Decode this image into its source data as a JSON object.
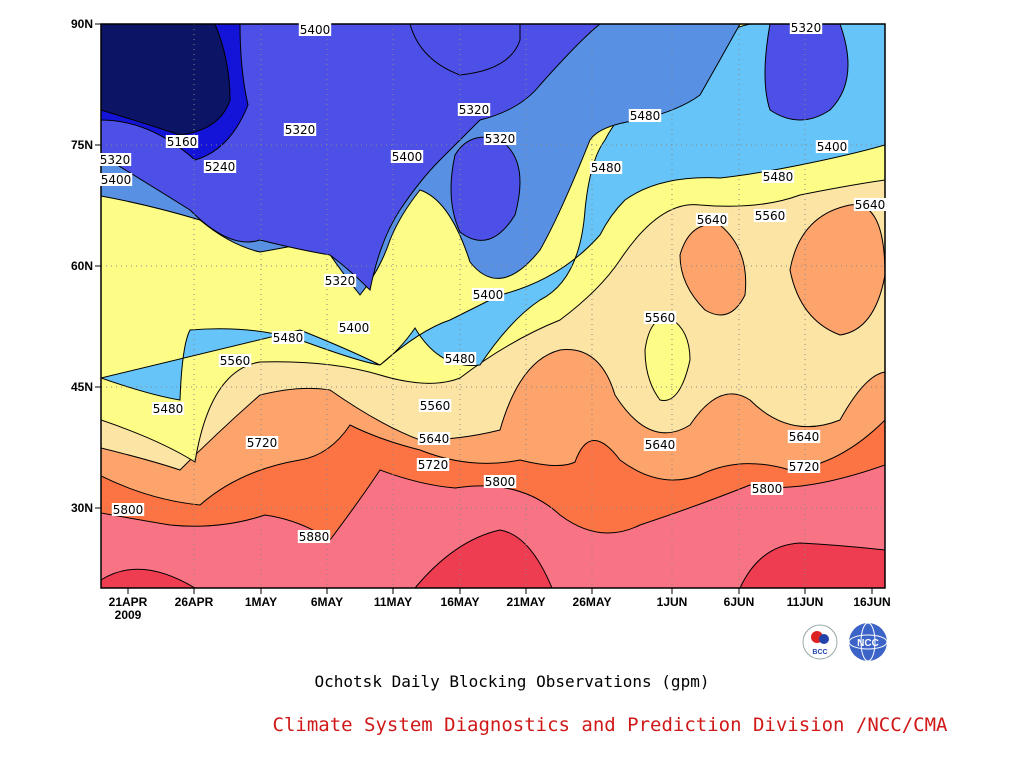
{
  "chart_data": {
    "type": "contour",
    "title": "Ochotsk Daily Blocking Observations (gpm)",
    "x_ticks": [
      "21APR",
      "26APR",
      "1MAY",
      "6MAY",
      "11MAY",
      "16MAY",
      "21MAY",
      "26MAY",
      "1JUN",
      "6JUN",
      "11JUN",
      "16JUN"
    ],
    "x_year_label": "2009",
    "y_ticks": [
      "90N",
      "75N",
      "60N",
      "45N",
      "30N"
    ],
    "contour_levels": [
      5160,
      5240,
      5320,
      5400,
      5480,
      5560,
      5640,
      5720,
      5800,
      5880
    ],
    "level_colors": {
      "below_5160": "#0c1466",
      "5160_5240": "#1414d8",
      "5240_5320": "#4c50e6",
      "5320_5400": "#5890e4",
      "5400_5480": "#66c4f8",
      "5480_5560": "#fcfc86",
      "5560_5640": "#fce4a4",
      "5640_5720": "#fca46c",
      "5720_5800": "#fc7444",
      "5800_5880": "#f87484",
      "above_5880": "#ee3c50"
    },
    "contour_labels": [
      "5400",
      "5320",
      "5160",
      "5320",
      "5240",
      "5400",
      "5320",
      "5320",
      "5400",
      "5480",
      "5320",
      "5400",
      "5480",
      "5480",
      "5560",
      "5640",
      "5640",
      "5320",
      "5400",
      "5400",
      "5560",
      "5480",
      "5560",
      "5480",
      "5480",
      "5560",
      "5640",
      "5720",
      "5640",
      "5720",
      "5640",
      "5720",
      "5800",
      "5800",
      "5800",
      "5880"
    ],
    "grid": "dotted"
  },
  "credit": "Climate System Diagnostics and Prediction Division /NCC/CMA",
  "logos": [
    "BCC",
    "NCC"
  ]
}
